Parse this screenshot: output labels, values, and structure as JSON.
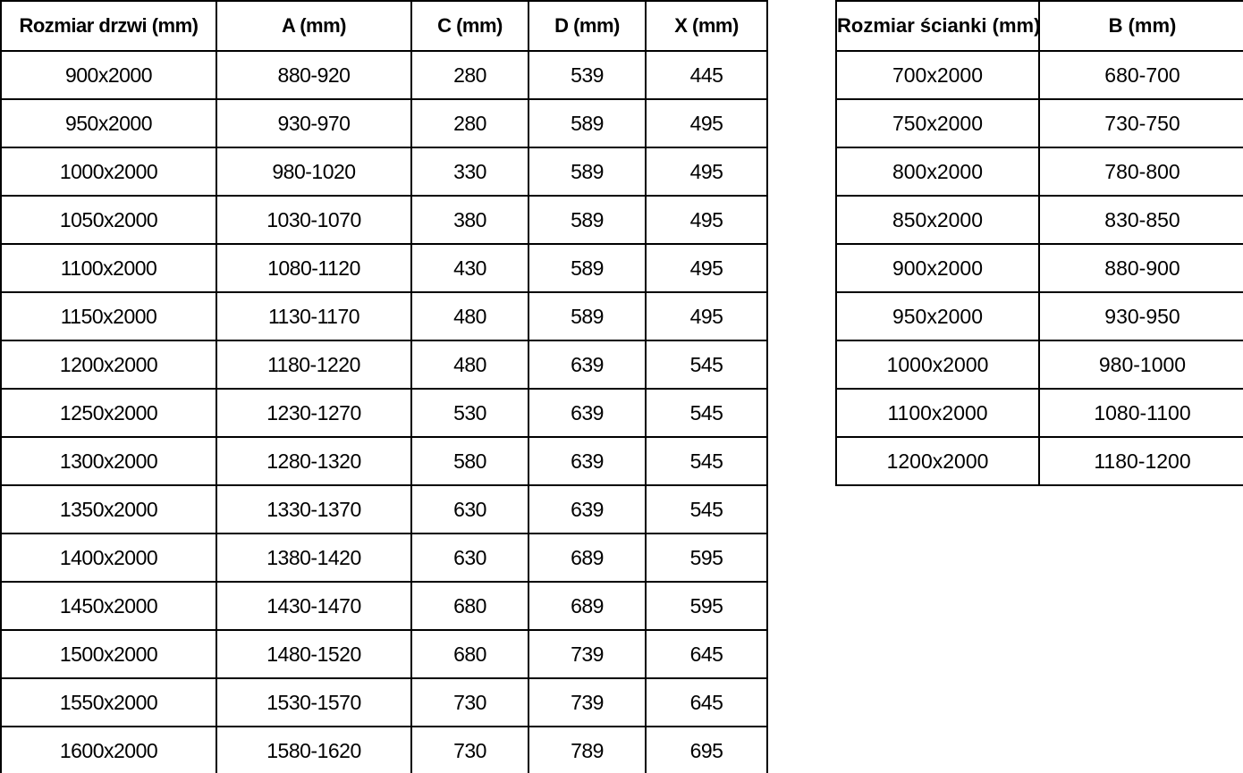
{
  "colors": {
    "background": "#ffffff",
    "border": "#000000",
    "text": "#000000"
  },
  "door_table": {
    "headers": [
      "Rozmiar drzwi (mm)",
      "A (mm)",
      "C (mm)",
      "D (mm)",
      "X (mm)"
    ],
    "rows": [
      [
        "900x2000",
        "880-920",
        "280",
        "539",
        "445"
      ],
      [
        "950x2000",
        "930-970",
        "280",
        "589",
        "495"
      ],
      [
        "1000x2000",
        "980-1020",
        "330",
        "589",
        "495"
      ],
      [
        "1050x2000",
        "1030-1070",
        "380",
        "589",
        "495"
      ],
      [
        "1100x2000",
        "1080-1120",
        "430",
        "589",
        "495"
      ],
      [
        "1150x2000",
        "1130-1170",
        "480",
        "589",
        "495"
      ],
      [
        "1200x2000",
        "1180-1220",
        "480",
        "639",
        "545"
      ],
      [
        "1250x2000",
        "1230-1270",
        "530",
        "639",
        "545"
      ],
      [
        "1300x2000",
        "1280-1320",
        "580",
        "639",
        "545"
      ],
      [
        "1350x2000",
        "1330-1370",
        "630",
        "639",
        "545"
      ],
      [
        "1400x2000",
        "1380-1420",
        "630",
        "689",
        "595"
      ],
      [
        "1450x2000",
        "1430-1470",
        "680",
        "689",
        "595"
      ],
      [
        "1500x2000",
        "1480-1520",
        "680",
        "739",
        "645"
      ],
      [
        "1550x2000",
        "1530-1570",
        "730",
        "739",
        "645"
      ],
      [
        "1600x2000",
        "1580-1620",
        "730",
        "789",
        "695"
      ]
    ]
  },
  "wall_table": {
    "headers": [
      "Rozmiar ścianki (mm)",
      "B (mm)"
    ],
    "rows": [
      [
        "700x2000",
        "680-700"
      ],
      [
        "750x2000",
        "730-750"
      ],
      [
        "800x2000",
        "780-800"
      ],
      [
        "850x2000",
        "830-850"
      ],
      [
        "900x2000",
        "880-900"
      ],
      [
        "950x2000",
        "930-950"
      ],
      [
        "1000x2000",
        "980-1000"
      ],
      [
        "1100x2000",
        "1080-1100"
      ],
      [
        "1200x2000",
        "1180-1200"
      ]
    ]
  }
}
